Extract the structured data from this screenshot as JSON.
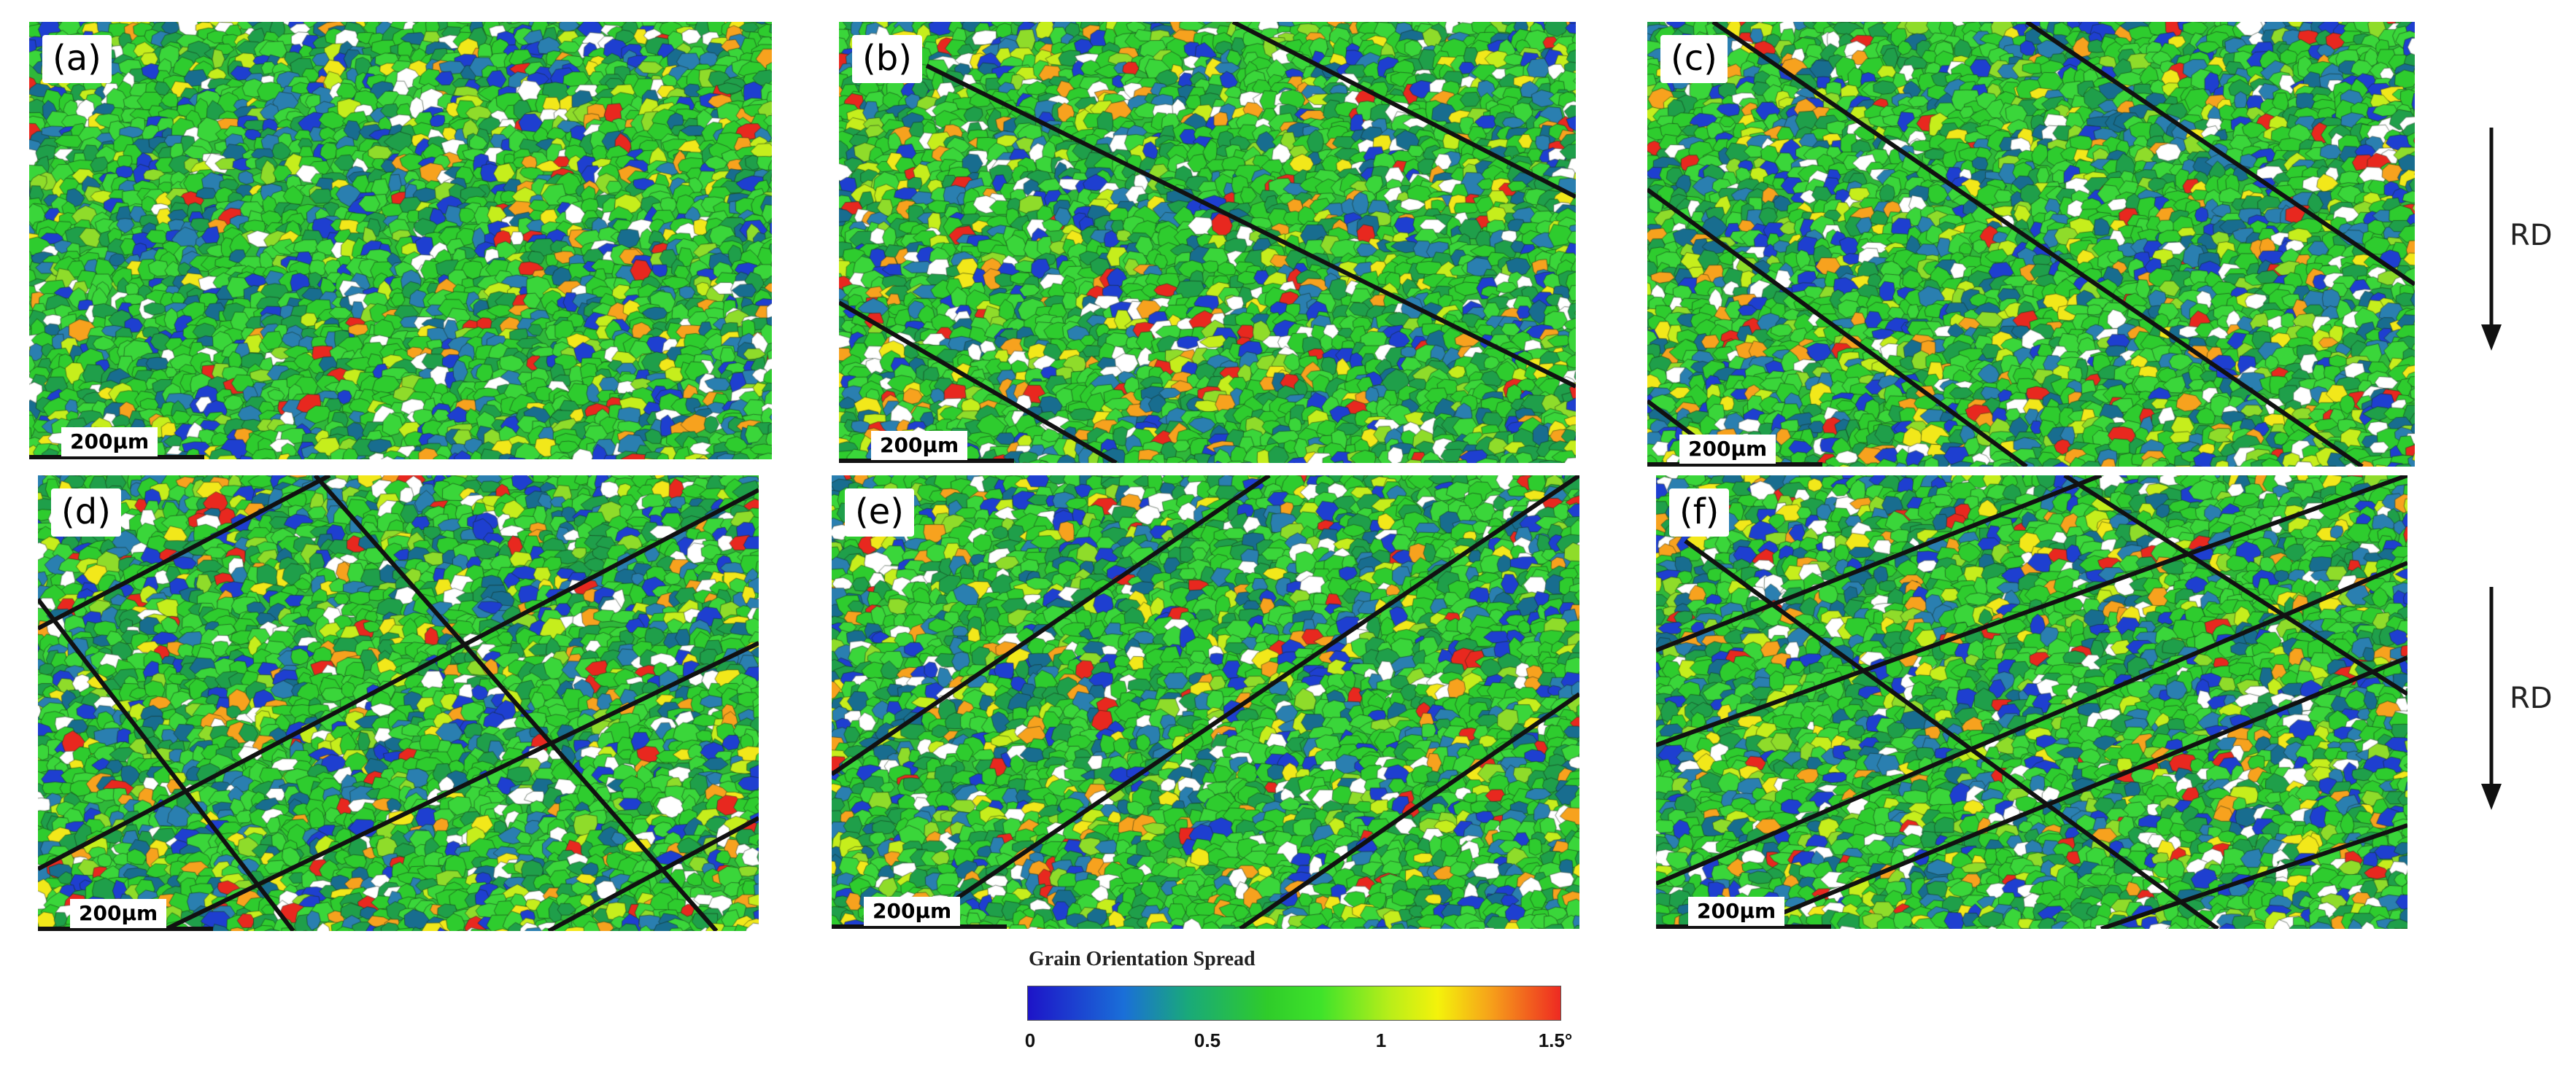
{
  "panels": [
    {
      "label": "(a)",
      "scale": "200μm",
      "lines": []
    },
    {
      "label": "(b)",
      "scale": "200μm",
      "lines": []
    },
    {
      "label": "(c)",
      "scale": "200μm",
      "lines": []
    },
    {
      "label": "(d)",
      "scale": "200μm",
      "lines": []
    },
    {
      "label": "(e)",
      "scale": "200μm",
      "lines": []
    },
    {
      "label": "(f)",
      "scale": "200μm",
      "lines": []
    }
  ],
  "rd_label_top": "RD",
  "rd_label_bottom": "RD",
  "legend": {
    "title": "Grain Orientation Spread",
    "ticks": [
      "0",
      "0.5",
      "1",
      "1.5°"
    ],
    "colors": [
      "#1d14c8",
      "#1a6fd8",
      "#19a97a",
      "#2fcc2a",
      "#3fe32a",
      "#b9ee19",
      "#f4f20b",
      "#f6a01a",
      "#ee2a22"
    ]
  }
}
